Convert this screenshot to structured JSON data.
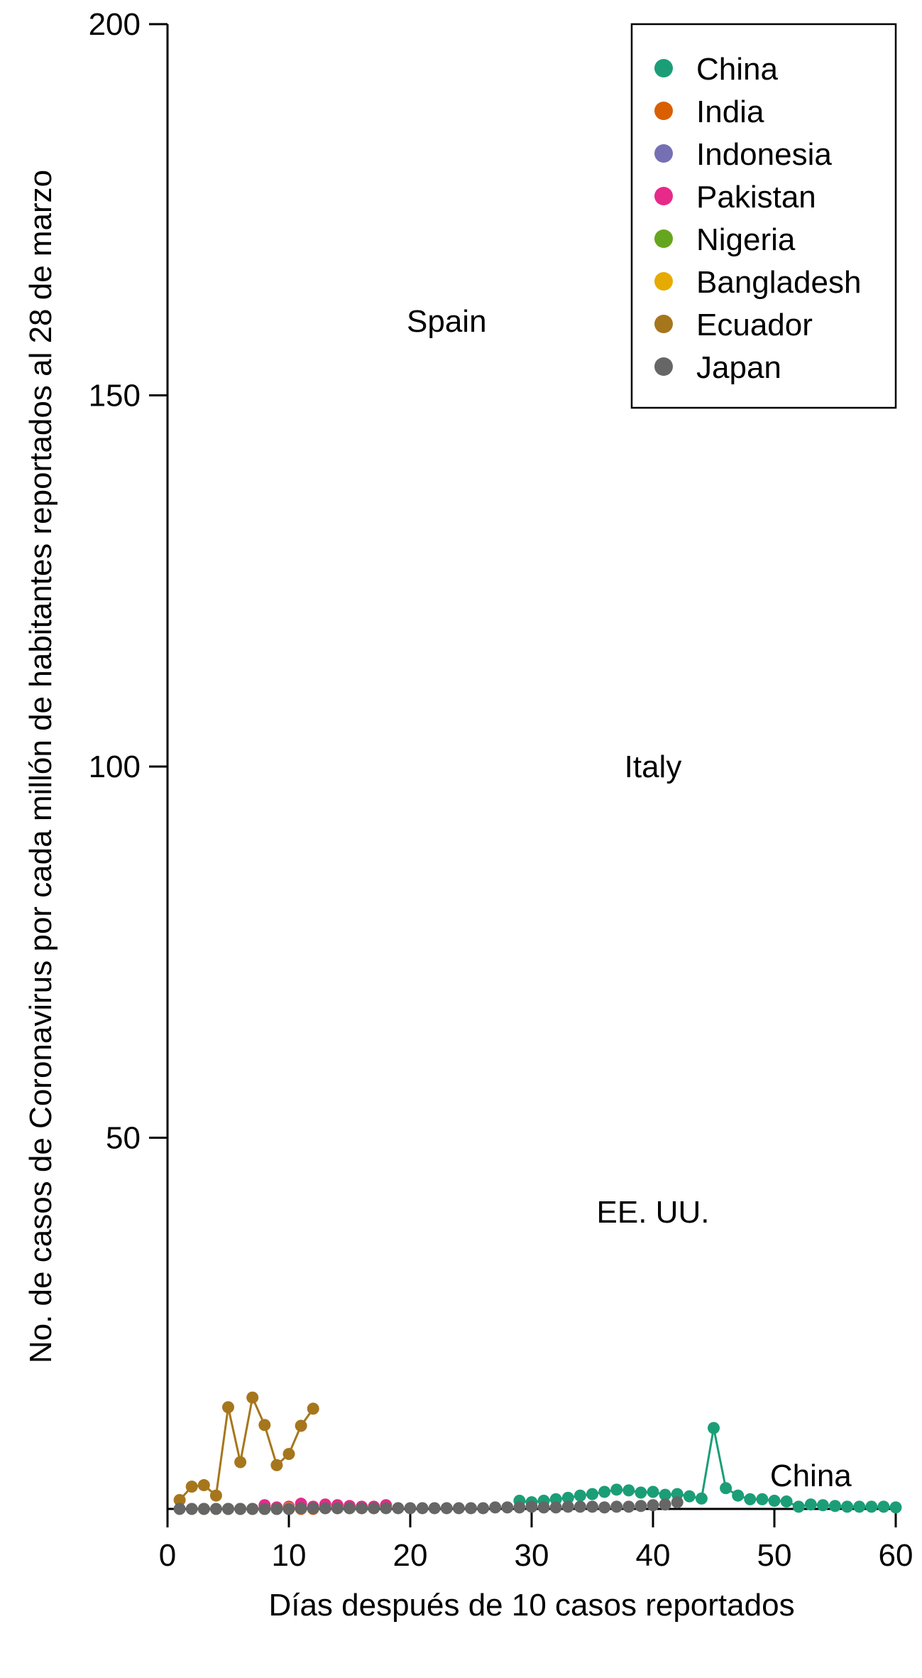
{
  "chart_data": {
    "type": "line",
    "title": "",
    "xlabel": "Días después de 10 casos reportados",
    "ylabel": "No. de casos de Coronavirus por cada millón de habitantes reportados al 28 de marzo",
    "xlim": [
      0,
      60
    ],
    "ylim": [
      0,
      200
    ],
    "xticks": [
      0,
      10,
      20,
      30,
      40,
      50,
      60
    ],
    "yticks": [
      50,
      100,
      150,
      200
    ],
    "grid": false,
    "legend_position": "top-right",
    "annotations": [
      {
        "text": "Spain",
        "x": 23,
        "y": 160
      },
      {
        "text": "Italy",
        "x": 40,
        "y": 100
      },
      {
        "text": "EE. UU.",
        "x": 40,
        "y": 40
      },
      {
        "text": "China",
        "x": 53,
        "y": 4.5
      }
    ],
    "series": [
      {
        "name": "China",
        "color": "#1b9e77",
        "lines": true,
        "x": [
          29,
          30,
          31,
          32,
          33,
          34,
          35,
          36,
          37,
          38,
          39,
          40,
          41,
          42,
          43,
          44,
          45,
          46,
          47,
          48,
          49,
          50,
          51,
          52,
          53,
          54,
          55,
          56,
          57,
          58,
          59,
          60
        ],
        "y": [
          1.1,
          0.9,
          1.1,
          1.3,
          1.5,
          1.8,
          2.0,
          2.3,
          2.6,
          2.5,
          2.2,
          2.3,
          1.9,
          2.0,
          1.7,
          1.4,
          10.9,
          2.8,
          1.8,
          1.3,
          1.3,
          1.1,
          1.0,
          0.3,
          0.6,
          0.5,
          0.4,
          0.3,
          0.3,
          0.3,
          0.3,
          0.2
        ]
      },
      {
        "name": "India",
        "color": "#d95f02",
        "lines": false,
        "x": [
          10,
          11,
          12,
          13,
          14,
          15,
          16,
          17
        ],
        "y": [
          0.0,
          0.0,
          0.0,
          0.1,
          0.1,
          0.1,
          0.1,
          0.1
        ]
      },
      {
        "name": "Indonesia",
        "color": "#7570b3",
        "lines": false,
        "x": [
          8,
          9,
          10,
          11,
          12,
          13
        ],
        "y": [
          0.0,
          0.0,
          0.1,
          0.1,
          0.1,
          0.1
        ]
      },
      {
        "name": "Pakistan",
        "color": "#e7298a",
        "lines": false,
        "x": [
          8,
          9,
          10,
          11,
          12,
          13,
          14,
          15,
          16,
          17,
          18
        ],
        "y": [
          0.5,
          0.2,
          0.3,
          0.7,
          0.3,
          0.6,
          0.5,
          0.4,
          0.3,
          0.3,
          0.5
        ]
      },
      {
        "name": "Nigeria",
        "color": "#66a61e",
        "lines": false,
        "x": [
          5,
          6,
          7,
          8,
          9,
          10
        ],
        "y": [
          0.0,
          0.0,
          0.0,
          0.0,
          0.0,
          0.0
        ]
      },
      {
        "name": "Bangladesh",
        "color": "#e6ab02",
        "lines": false,
        "x": [
          3,
          10
        ],
        "y": [
          0.0,
          0.1
        ]
      },
      {
        "name": "Ecuador",
        "color": "#a6761d",
        "lines": true,
        "x": [
          1,
          2,
          3,
          4,
          5,
          6,
          7,
          8,
          9,
          10,
          11,
          12
        ],
        "y": [
          1.2,
          3.0,
          3.2,
          1.8,
          13.7,
          6.3,
          15.0,
          11.3,
          5.9,
          7.4,
          11.2,
          13.5
        ]
      },
      {
        "name": "Japan",
        "color": "#666666",
        "lines": false,
        "x": [
          1,
          2,
          3,
          4,
          5,
          6,
          7,
          8,
          9,
          10,
          11,
          12,
          13,
          14,
          15,
          16,
          17,
          18,
          19,
          20,
          21,
          22,
          23,
          24,
          25,
          26,
          27,
          28,
          29,
          30,
          31,
          32,
          33,
          34,
          35,
          36,
          37,
          38,
          39,
          40,
          41,
          42
        ],
        "y": [
          0.0,
          0.0,
          0.0,
          0.0,
          0.0,
          0.0,
          0.0,
          0.0,
          0.0,
          0.0,
          0.1,
          0.1,
          0.1,
          0.1,
          0.1,
          0.1,
          0.1,
          0.1,
          0.1,
          0.1,
          0.1,
          0.1,
          0.1,
          0.1,
          0.1,
          0.1,
          0.2,
          0.2,
          0.2,
          0.3,
          0.2,
          0.2,
          0.3,
          0.3,
          0.3,
          0.2,
          0.3,
          0.3,
          0.4,
          0.5,
          0.6,
          0.9
        ]
      }
    ]
  }
}
